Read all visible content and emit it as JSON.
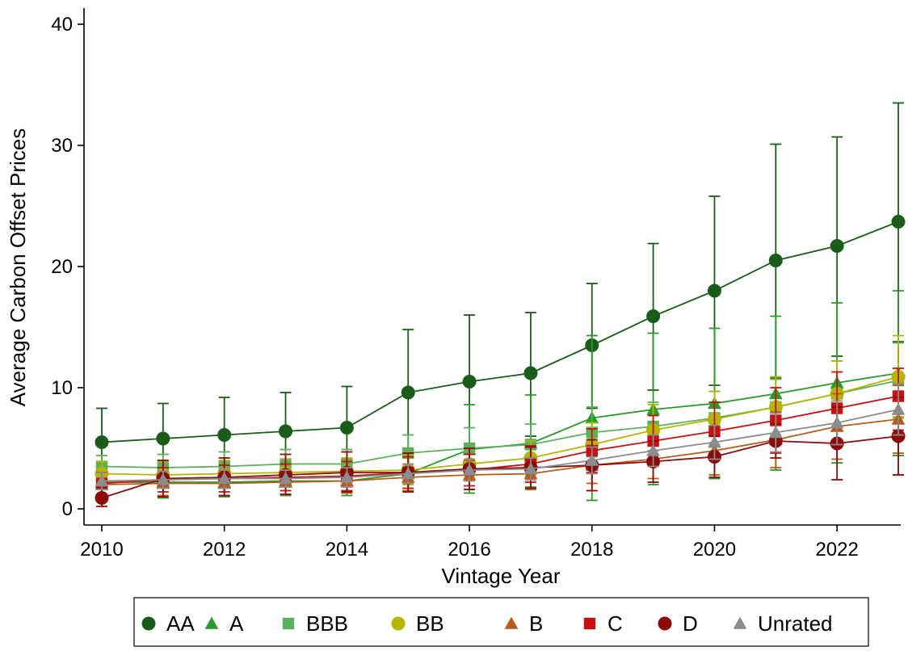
{
  "chart_data": {
    "type": "line",
    "title": "",
    "xlabel": "Vintage Year",
    "ylabel": "Average Carbon Offset Prices",
    "xlim": [
      2010,
      2023
    ],
    "ylim": [
      0,
      40
    ],
    "x_ticks": [
      2010,
      2012,
      2014,
      2016,
      2018,
      2020,
      2022
    ],
    "x_tick_labels": [
      "2010",
      "2012",
      "2014",
      "2016",
      "2018",
      "2020",
      "2022"
    ],
    "y_ticks": [
      0,
      10,
      20,
      30,
      40
    ],
    "y_tick_labels": [
      "0",
      "10",
      "20",
      "30",
      "40"
    ],
    "grid": false,
    "legend_position": "bottom",
    "x": [
      2010,
      2011,
      2012,
      2013,
      2014,
      2015,
      2016,
      2017,
      2018,
      2019,
      2020,
      2021,
      2022,
      2023
    ],
    "series": [
      {
        "name": "AA",
        "marker": "circle",
        "color": "#1a5c1a",
        "values": [
          5.5,
          5.8,
          6.1,
          6.4,
          6.7,
          9.6,
          10.5,
          11.2,
          13.5,
          15.9,
          18.0,
          20.5,
          21.7,
          23.7
        ],
        "ci_low": [
          2.8,
          2.8,
          3.0,
          3.0,
          3.3,
          4.5,
          5.0,
          6.0,
          8.3,
          9.8,
          10.2,
          10.8,
          12.6,
          13.8
        ],
        "ci_high": [
          8.3,
          8.7,
          9.2,
          9.6,
          10.1,
          14.8,
          16.0,
          16.2,
          18.6,
          21.9,
          25.8,
          30.1,
          30.7,
          33.5
        ]
      },
      {
        "name": "A",
        "marker": "triangle",
        "color": "#2a9a2a",
        "values": [
          2.2,
          2.2,
          2.2,
          2.3,
          2.3,
          2.9,
          4.9,
          5.4,
          7.5,
          8.2,
          8.7,
          9.5,
          10.4,
          11.2
        ],
        "ci_low": [
          1.2,
          0.9,
          1.0,
          1.1,
          1.1,
          1.5,
          1.3,
          1.8,
          0.7,
          2.0,
          2.5,
          3.2,
          3.8,
          4.4
        ],
        "ci_high": [
          3.2,
          3.5,
          3.5,
          3.6,
          3.6,
          4.3,
          8.6,
          9.4,
          14.3,
          14.5,
          14.9,
          15.9,
          17.0,
          18.0
        ]
      },
      {
        "name": "BBB",
        "marker": "square",
        "color": "#5bb05b",
        "values": [
          3.5,
          3.4,
          3.5,
          3.7,
          3.7,
          4.6,
          5.0,
          5.3,
          6.3,
          6.8,
          7.5,
          8.4,
          9.5,
          10.6
        ],
        "ci_low": [
          2.5,
          2.2,
          2.3,
          2.4,
          2.4,
          3.0,
          3.2,
          3.5,
          4.3,
          4.8,
          5.3,
          6.1,
          6.8,
          7.5
        ],
        "ci_high": [
          4.4,
          4.5,
          4.7,
          4.9,
          4.9,
          6.1,
          6.7,
          7.0,
          8.4,
          8.8,
          9.7,
          10.7,
          12.2,
          13.7
        ]
      },
      {
        "name": "BB",
        "marker": "circle",
        "color": "#b5b500",
        "values": [
          2.9,
          2.8,
          2.9,
          3.0,
          3.1,
          3.2,
          3.7,
          4.2,
          5.3,
          6.5,
          7.4,
          8.4,
          9.5,
          10.9
        ],
        "ci_low": [
          1.9,
          1.7,
          1.8,
          1.9,
          2.0,
          2.0,
          2.4,
          2.8,
          3.5,
          4.4,
          5.1,
          5.9,
          6.8,
          7.6
        ],
        "ci_high": [
          3.9,
          3.9,
          4.0,
          4.1,
          4.2,
          4.4,
          5.0,
          5.6,
          7.1,
          8.6,
          9.7,
          10.9,
          12.2,
          14.3
        ]
      },
      {
        "name": "B",
        "marker": "triangle",
        "color": "#b85c1a",
        "values": [
          2.0,
          2.1,
          2.1,
          2.2,
          2.3,
          2.6,
          2.8,
          2.9,
          3.6,
          4.1,
          4.8,
          5.7,
          6.8,
          7.4
        ],
        "ci_low": [
          1.0,
          1.1,
          1.1,
          1.2,
          1.3,
          1.5,
          1.6,
          1.6,
          2.1,
          2.5,
          2.8,
          3.4,
          4.1,
          4.6
        ],
        "ci_high": [
          3.0,
          3.1,
          3.1,
          3.2,
          3.3,
          3.7,
          4.0,
          4.2,
          5.1,
          5.7,
          6.8,
          8.0,
          9.5,
          10.2
        ]
      },
      {
        "name": "C",
        "marker": "square",
        "color": "#c81010",
        "values": [
          2.1,
          2.4,
          2.5,
          2.6,
          2.7,
          3.0,
          3.2,
          3.7,
          4.8,
          5.6,
          6.4,
          7.3,
          8.3,
          9.3
        ],
        "ci_low": [
          1.2,
          1.4,
          1.4,
          1.5,
          1.5,
          1.7,
          1.9,
          2.2,
          3.0,
          3.5,
          4.0,
          4.6,
          5.3,
          6.5
        ],
        "ci_high": [
          3.0,
          3.4,
          3.6,
          3.7,
          3.9,
          4.3,
          4.5,
          5.2,
          6.6,
          7.7,
          8.8,
          10.0,
          11.3,
          11.6
        ]
      },
      {
        "name": "D",
        "marker": "circle",
        "color": "#8b0a0a",
        "values": [
          0.9,
          2.5,
          2.6,
          2.8,
          3.0,
          3.0,
          3.3,
          3.4,
          3.6,
          3.9,
          4.3,
          5.6,
          5.4,
          6.0
        ],
        "ci_low": [
          0.2,
          1.0,
          1.1,
          1.2,
          1.4,
          1.4,
          1.6,
          1.7,
          1.5,
          2.2,
          2.6,
          4.2,
          2.4,
          2.8
        ],
        "ci_high": [
          1.7,
          4.0,
          4.2,
          4.5,
          4.7,
          4.6,
          5.0,
          5.1,
          5.7,
          5.6,
          6.0,
          7.0,
          8.4,
          9.2
        ]
      },
      {
        "name": "Unrated",
        "marker": "triangle",
        "color": "#8c8c8c",
        "values": [
          2.3,
          2.4,
          2.5,
          2.5,
          2.6,
          2.9,
          3.2,
          3.3,
          4.0,
          4.8,
          5.5,
          6.3,
          7.1,
          8.2
        ],
        "ci_low": [
          1.6,
          1.7,
          1.7,
          1.8,
          1.8,
          2.1,
          2.3,
          2.4,
          2.9,
          3.5,
          4.1,
          4.7,
          5.3,
          6.1
        ],
        "ci_high": [
          3.0,
          3.1,
          3.3,
          3.2,
          3.4,
          3.7,
          4.1,
          4.2,
          5.1,
          6.1,
          6.9,
          7.9,
          8.9,
          10.3
        ]
      }
    ]
  }
}
